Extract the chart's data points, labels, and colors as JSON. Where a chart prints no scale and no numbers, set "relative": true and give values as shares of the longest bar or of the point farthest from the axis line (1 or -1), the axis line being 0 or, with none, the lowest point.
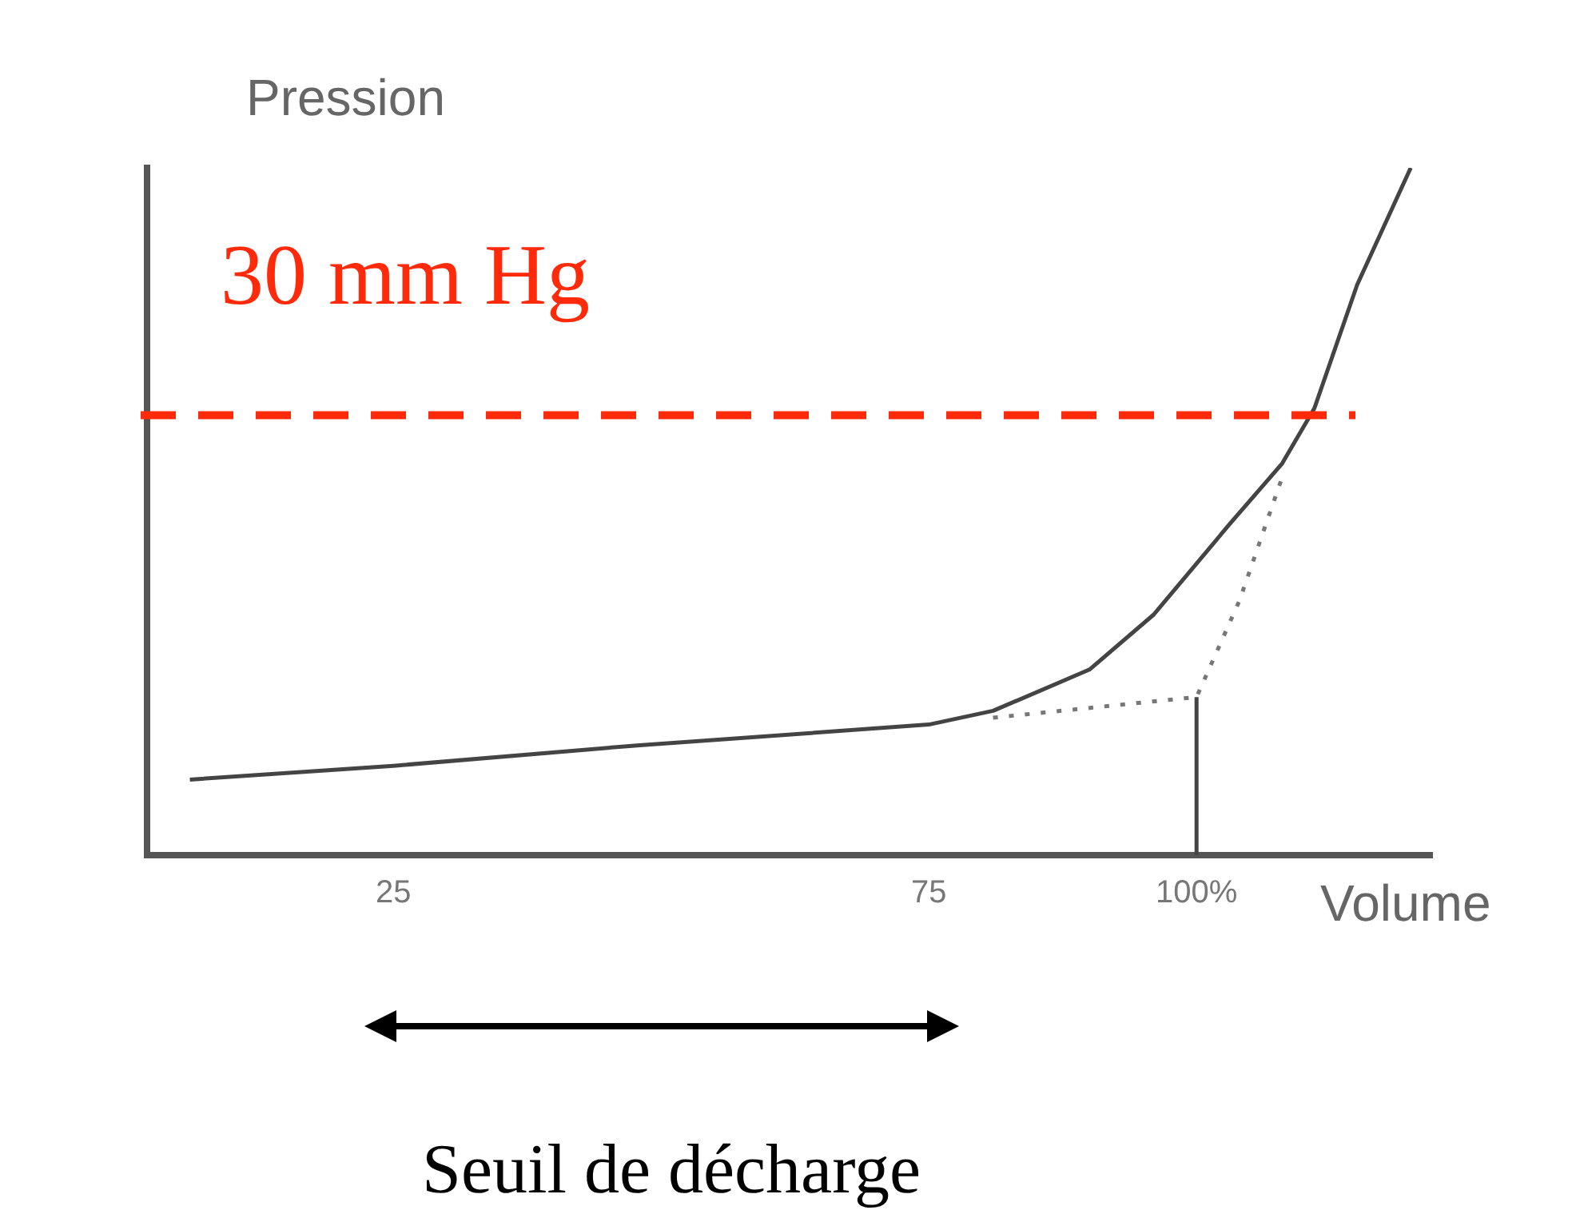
{
  "chart_data": {
    "type": "line",
    "relative": true,
    "xlabel": "Volume",
    "ylabel": "Pression",
    "xlim": [
      2,
      122
    ],
    "xticks": [
      25,
      75,
      {
        "value": 100,
        "label": "100%"
      }
    ],
    "grid": false,
    "legend": false,
    "marker": "none",
    "series": [
      {
        "color": "#444444",
        "line_style": "solid",
        "x": [
          6,
          25,
          48,
          75,
          81,
          90,
          96,
          103,
          108,
          111,
          115,
          120
        ],
        "values": [
          0.11,
          0.13,
          0.16,
          0.19,
          0.21,
          0.27,
          0.35,
          0.48,
          0.57,
          0.65,
          0.83,
          1
        ]
      },
      {
        "color": "#777777",
        "line_style": "dotted",
        "x": [
          81,
          100,
          104,
          108
        ],
        "values": [
          0.2,
          0.23,
          0.37,
          0.55
        ]
      },
      {
        "color": "#444444",
        "line_style": "solid",
        "x": [
          100,
          100
        ],
        "values": [
          0,
          0.23
        ]
      }
    ],
    "ref_lines": [
      {
        "axis": "y",
        "value": 0.64,
        "label": "30 mm Hg",
        "color": "#ff2a0a",
        "line_style": "dashed"
      }
    ],
    "annotations": [
      "Seuil de décharge"
    ]
  }
}
